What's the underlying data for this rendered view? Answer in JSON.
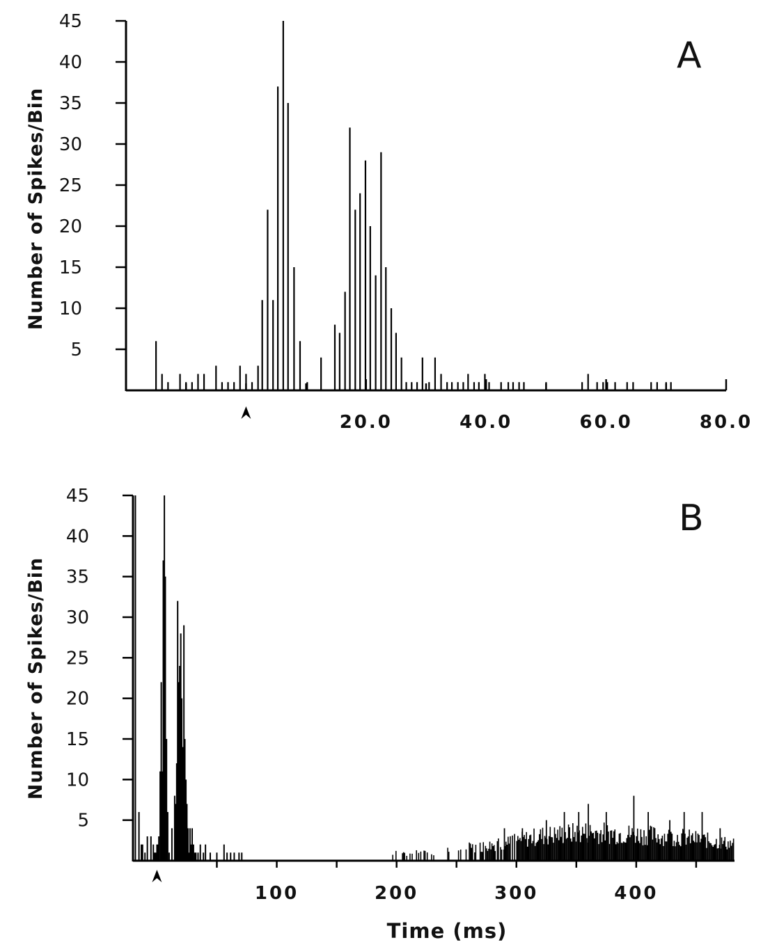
{
  "chart_data": [
    {
      "panel": "A",
      "type": "bar",
      "ylabel": "Number of Spikes/Bin",
      "xlabel": "",
      "ylim": [
        0,
        45
      ],
      "yticks": [
        "5",
        "10",
        "15",
        "20",
        "25",
        "30",
        "35",
        "40",
        "45"
      ],
      "xlim": [
        -20,
        80
      ],
      "xticks": [
        "20.0",
        "40.0",
        "60.0",
        "80.0"
      ],
      "stimulus_marker_x": 0,
      "x": [
        -15,
        -14,
        -13,
        -11,
        -10,
        -9,
        -8,
        -7,
        -5,
        -4,
        -3,
        -2,
        -1,
        0,
        1,
        2,
        2.7,
        3.6,
        4.5,
        5.3,
        6.2,
        7.0,
        8.0,
        9.0,
        10.2,
        12.5,
        14.8,
        15.6,
        16.5,
        17.3,
        18.2,
        19.0,
        19.9,
        20.7,
        21.6,
        22.5,
        23.3,
        24.2,
        25.0,
        25.9,
        26.7,
        27.6,
        28.5,
        29.4,
        30.5,
        31.5,
        32.5,
        33.5,
        34.3,
        35.3,
        36.2,
        37.0,
        38.0,
        38.8,
        39.8,
        40.5,
        42.5,
        43.7,
        44.5,
        45.5,
        46.3,
        50.0,
        56.0,
        57.0,
        58.5,
        59.5,
        60.2,
        61.5,
        63.5,
        64.5,
        67.5,
        68.5,
        70.0,
        70.8
      ],
      "values": [
        6,
        2,
        1,
        2,
        1,
        1,
        2,
        2,
        3,
        1,
        1,
        1,
        3,
        2,
        1,
        3,
        11,
        22,
        11,
        37,
        45,
        35,
        15,
        6,
        1,
        4,
        8,
        7,
        12,
        32,
        22,
        24,
        28,
        20,
        14,
        29,
        15,
        10,
        7,
        4,
        1,
        1,
        1,
        4,
        1,
        4,
        2,
        1,
        1,
        1,
        1,
        2,
        1,
        1,
        2,
        1,
        1,
        1,
        1,
        1,
        1,
        1,
        1,
        2,
        1,
        1,
        1,
        1,
        1,
        1,
        1,
        1,
        1,
        1
      ]
    },
    {
      "panel": "B",
      "type": "bar",
      "ylabel": "Number of Spikes/Bin",
      "xlabel": "Time (ms)",
      "ylim": [
        0,
        45
      ],
      "yticks": [
        "5",
        "10",
        "15",
        "20",
        "25",
        "30",
        "35",
        "40",
        "45"
      ],
      "xlim": [
        -20,
        482
      ],
      "xticks": [
        "100",
        "200",
        "300",
        "400"
      ],
      "stimulus_marker_x": 0,
      "early_x": [
        -18,
        -15,
        -13,
        -12,
        -10,
        -8,
        -5,
        -3,
        -2,
        -1,
        0,
        0.8,
        1.6,
        2.7,
        3.6,
        4.5,
        5.3,
        6.2,
        7.0,
        8.0,
        9.0,
        10.2,
        12.5,
        14.8,
        15.6,
        16.5,
        17.3,
        18.2,
        19.0,
        19.9,
        20.7,
        21.6,
        22.5,
        23.3,
        24.2,
        25.0,
        25.9,
        26.7,
        27.6,
        28.5,
        29.4,
        30.5,
        31.5,
        32.5,
        34.3,
        36.2,
        38.8,
        40.5,
        44.5,
        50,
        56,
        58.5,
        61.5,
        64.5,
        68.5,
        70.8
      ],
      "early_values": [
        45,
        6,
        2,
        2,
        1,
        3,
        3,
        2,
        1,
        1,
        2,
        2,
        3,
        11,
        22,
        11,
        37,
        45,
        35,
        15,
        6,
        1,
        4,
        8,
        7,
        12,
        32,
        22,
        24,
        28,
        20,
        14,
        29,
        15,
        10,
        7,
        4,
        1,
        4,
        2,
        4,
        2,
        1,
        1,
        1,
        2,
        1,
        2,
        1,
        1,
        2,
        1,
        1,
        1,
        1,
        1
      ],
      "late_profile": [
        {
          "x": 195,
          "v": 1
        },
        {
          "x": 225,
          "v": 1
        },
        {
          "x": 245,
          "v": 1.5
        },
        {
          "x": 265,
          "v": 1.8
        },
        {
          "x": 290,
          "v": 2.3
        },
        {
          "x": 320,
          "v": 3.3
        },
        {
          "x": 360,
          "v": 3.8
        },
        {
          "x": 400,
          "v": 3.5
        },
        {
          "x": 440,
          "v": 3.1
        },
        {
          "x": 482,
          "v": 2.2
        }
      ],
      "late_peaks": [
        {
          "x": 290,
          "v": 4
        },
        {
          "x": 305,
          "v": 4
        },
        {
          "x": 325,
          "v": 5
        },
        {
          "x": 340,
          "v": 6
        },
        {
          "x": 352,
          "v": 6
        },
        {
          "x": 360,
          "v": 7
        },
        {
          "x": 375,
          "v": 6
        },
        {
          "x": 398,
          "v": 8
        },
        {
          "x": 410,
          "v": 6
        },
        {
          "x": 428,
          "v": 5
        },
        {
          "x": 440,
          "v": 6
        },
        {
          "x": 455,
          "v": 6
        },
        {
          "x": 470,
          "v": 4
        }
      ]
    }
  ],
  "labels": {
    "panel_a": "A",
    "panel_b": "B",
    "ylabel": "Number of Spikes/Bin",
    "xlabel": "Time (ms)"
  }
}
